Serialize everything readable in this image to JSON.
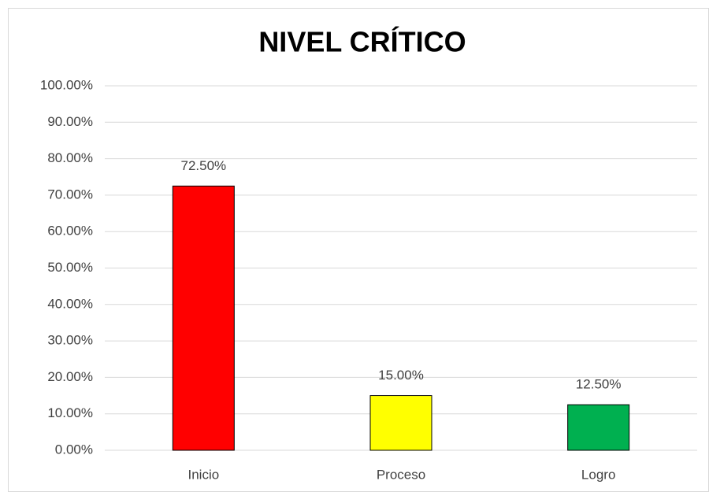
{
  "chart_data": {
    "type": "bar",
    "title": "NIVEL CRÍTICO",
    "categories": [
      "Inicio",
      "Proceso",
      "Logro"
    ],
    "values": [
      72.5,
      15,
      12.5
    ],
    "value_labels": [
      "72.50%",
      "15.00%",
      "12.50%"
    ],
    "colors": [
      "#ff0000",
      "#ffff00",
      "#00b050"
    ],
    "ylim": [
      0,
      100
    ],
    "yticks": [
      {
        "value": 0,
        "label": "0.00%"
      },
      {
        "value": 10,
        "label": "10.00%"
      },
      {
        "value": 20,
        "label": "20.00%"
      },
      {
        "value": 30,
        "label": "30.00%"
      },
      {
        "value": 40,
        "label": "40.00%"
      },
      {
        "value": 50,
        "label": "50.00%"
      },
      {
        "value": 60,
        "label": "60.00%"
      },
      {
        "value": 70,
        "label": "70.00%"
      },
      {
        "value": 80,
        "label": "80.00%"
      },
      {
        "value": 90,
        "label": "90.00%"
      },
      {
        "value": 100,
        "label": "100.00%"
      }
    ],
    "grid": true
  }
}
